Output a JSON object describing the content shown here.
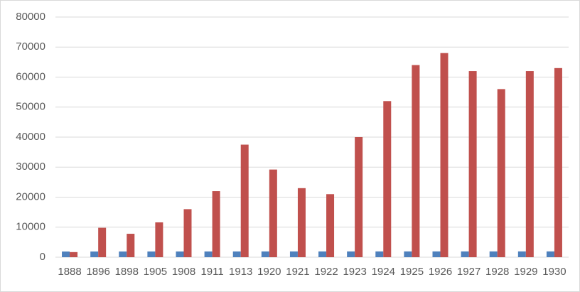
{
  "chart_data": {
    "type": "bar",
    "categories": [
      "1888",
      "1896",
      "1898",
      "1905",
      "1908",
      "1911",
      "1913",
      "1920",
      "1921",
      "1922",
      "1923",
      "1924",
      "1925",
      "1926",
      "1927",
      "1928",
      "1929",
      "1930"
    ],
    "series": [
      {
        "color": "#4f81bd",
        "values": [
          1888,
          1896,
          1898,
          1905,
          1908,
          1911,
          1913,
          1920,
          1921,
          1922,
          1923,
          1924,
          1925,
          1926,
          1927,
          1928,
          1929,
          1930
        ]
      },
      {
        "color": "#c0504d",
        "values": [
          1700,
          9800,
          7800,
          11600,
          16000,
          22000,
          37500,
          29200,
          23000,
          21000,
          40000,
          52000,
          64000,
          68000,
          62000,
          56000,
          62000,
          63000
        ]
      }
    ],
    "ylim": [
      0,
      80000
    ],
    "yticks": [
      0,
      10000,
      20000,
      30000,
      40000,
      50000,
      60000,
      70000,
      80000
    ],
    "grid": true
  }
}
